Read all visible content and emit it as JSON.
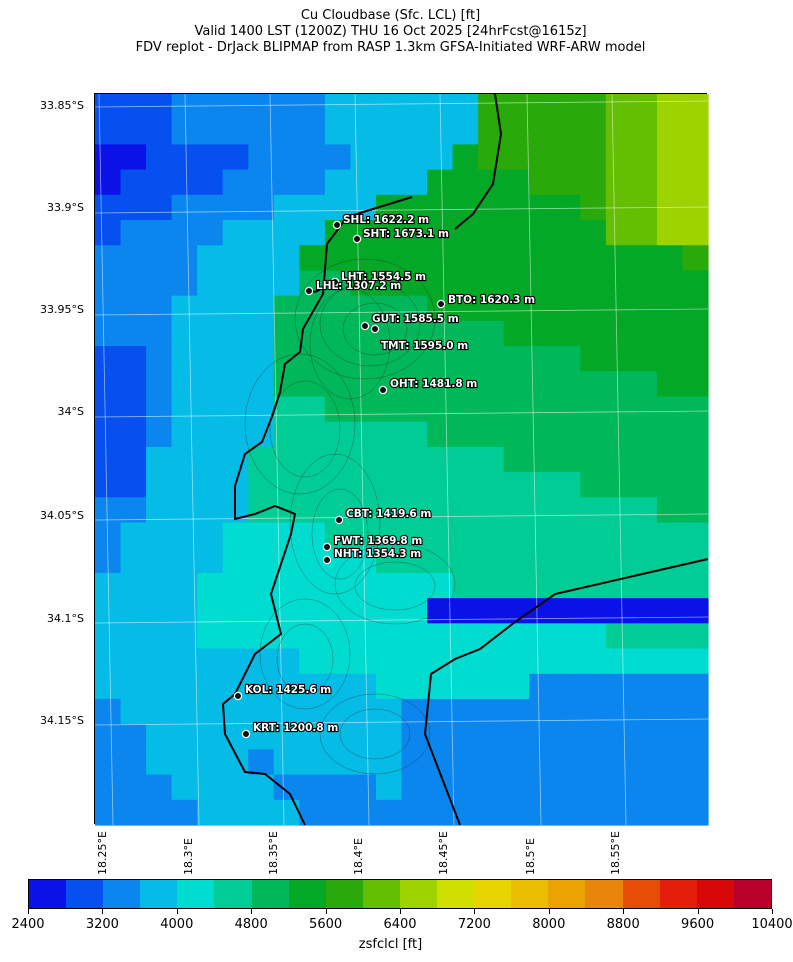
{
  "header": {
    "title_line1": "Cu Cloudbase (Sfc. LCL) [ft]",
    "title_line2": "Valid 1400 LST (1200Z) THU 16 Oct 2025 [24hrFcst@1615z]",
    "title_line3": "FDV replot - DrJack BLIPMAP from RASP 1.3km GFSA-Initiated WRF-ARW model"
  },
  "map": {
    "lat_labels": [
      "33.85°S",
      "33.9°S",
      "33.95°S",
      "34°S",
      "34.05°S",
      "34.1°S",
      "34.15°S"
    ],
    "lon_labels": [
      "18.25°E",
      "18.3°E",
      "18.35°E",
      "18.4°E",
      "18.45°E",
      "18.5°E",
      "18.55°E"
    ],
    "stations": [
      {
        "code": "SHL",
        "label": "SHL: 1622.2 m"
      },
      {
        "code": "SHT",
        "label": "SHT: 1673.1 m"
      },
      {
        "code": "LHT",
        "label": "LHT: 1554.5 m"
      },
      {
        "code": "LHL",
        "label": "LHL: 1307.2 m"
      },
      {
        "code": "BTO",
        "label": "BTO: 1620.3 m"
      },
      {
        "code": "GUT",
        "label": "GUT: 1585.5 m"
      },
      {
        "code": "TMT",
        "label": "TMT: 1595.0 m"
      },
      {
        "code": "OHT",
        "label": "OHT: 1481.8 m"
      },
      {
        "code": "CBT",
        "label": "CBT: 1419.6 m"
      },
      {
        "code": "FWT",
        "label": "FWT: 1369.8 m"
      },
      {
        "code": "NHT",
        "label": "NHT: 1354.3 m"
      },
      {
        "code": "KOL",
        "label": "KOL: 1425.6 m"
      },
      {
        "code": "KRT",
        "label": "KRT: 1200.8 m"
      }
    ]
  },
  "colorbar": {
    "label": "zsfclcl [ft]",
    "ticks": [
      "2400",
      "3200",
      "4000",
      "4800",
      "5600",
      "6400",
      "7200",
      "8000",
      "8800",
      "9600",
      "10400"
    ],
    "colors": [
      "#0a12e8",
      "#0650f0",
      "#0a86ee",
      "#05bce6",
      "#00ddd0",
      "#00cd96",
      "#00b85a",
      "#03a826",
      "#2aa90a",
      "#64be02",
      "#9fd300",
      "#cfe000",
      "#e8d400",
      "#ebbd00",
      "#eaa300",
      "#e8850a",
      "#e64d06",
      "#e41e0a",
      "#d90808",
      "#b8002a"
    ]
  }
}
